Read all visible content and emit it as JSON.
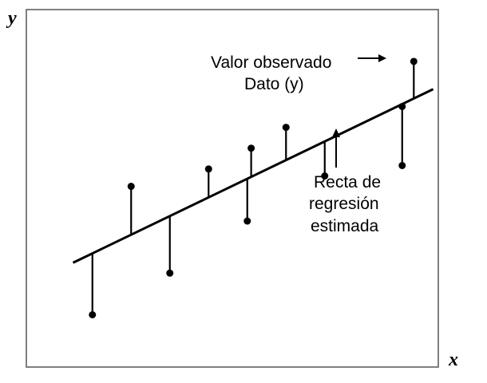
{
  "axes": {
    "x_label": "x",
    "y_label": "y"
  },
  "annotations": {
    "observed_line1": "Valor observado",
    "observed_line2": "Dato (y)",
    "regression_line1": "Recta de",
    "regression_line2": "regresión",
    "regression_line3": "estimada"
  },
  "chart_data": {
    "type": "scatter",
    "regression_line": {
      "x": [
        1,
        10.3
      ],
      "y": [
        2.5,
        7.5
      ]
    },
    "points": [
      {
        "x": 1.5,
        "y": 1.0
      },
      {
        "x": 2.5,
        "y": 4.7
      },
      {
        "x": 3.5,
        "y": 2.2
      },
      {
        "x": 4.5,
        "y": 5.2
      },
      {
        "x": 5.5,
        "y": 3.7
      },
      {
        "x": 5.6,
        "y": 5.8
      },
      {
        "x": 6.5,
        "y": 6.4
      },
      {
        "x": 7.5,
        "y": 5.0
      },
      {
        "x": 9.5,
        "y": 5.3
      },
      {
        "x": 9.5,
        "y": 7.0
      },
      {
        "x": 9.8,
        "y": 8.3
      }
    ],
    "colors": {
      "ink": "#000000",
      "background": "#ffffff"
    }
  }
}
